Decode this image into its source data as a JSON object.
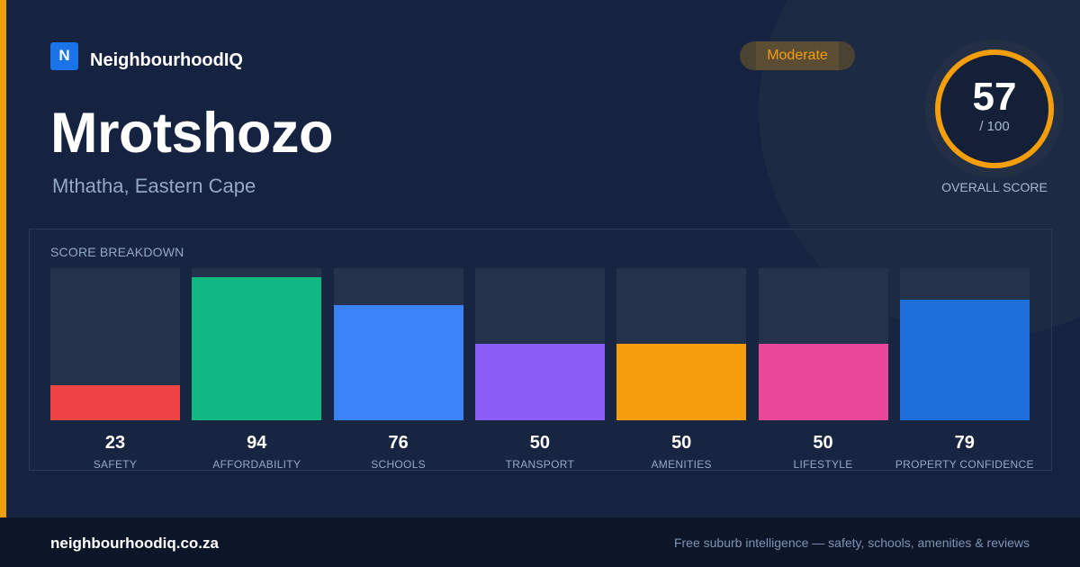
{
  "brand": {
    "logo_letter": "N",
    "name": "NeighbourhoodIQ"
  },
  "suburb": {
    "name": "Mrotshozo",
    "location": "Mthatha, Eastern Cape"
  },
  "rating_badge": {
    "label": "Moderate",
    "color": "#f59e0b"
  },
  "overall_score": {
    "value": "57",
    "max_label": "/ 100",
    "caption": "OVERALL SCORE",
    "fraction": 0.57,
    "ring_color": "#f59e0b"
  },
  "breakdown": {
    "title": "SCORE BREAKDOWN",
    "items": [
      {
        "label": "SAFETY",
        "value": 23,
        "color": "#ef4444"
      },
      {
        "label": "AFFORDABILITY",
        "value": 94,
        "color": "#10b981"
      },
      {
        "label": "SCHOOLS",
        "value": 76,
        "color": "#3b82f6"
      },
      {
        "label": "TRANSPORT",
        "value": 50,
        "color": "#8b5cf6"
      },
      {
        "label": "AMENITIES",
        "value": 50,
        "color": "#f59e0b"
      },
      {
        "label": "LIFESTYLE",
        "value": 50,
        "color": "#ec4899"
      },
      {
        "label": "PROPERTY CONFIDENCE",
        "value": 79,
        "color": "#1d6fdc"
      }
    ]
  },
  "footer": {
    "url": "neighbourhoodiq.co.za",
    "tagline": "Free suburb intelligence — safety, schools, amenities & reviews"
  }
}
